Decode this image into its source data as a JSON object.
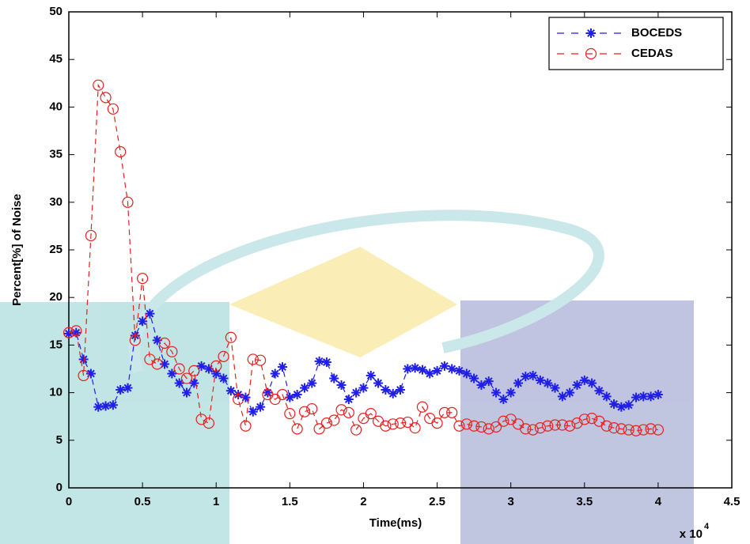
{
  "chart_data": {
    "type": "line",
    "xlabel": "Time(ms)",
    "ylabel": "Percent[%] of Noise",
    "x_multiplier": "x 10",
    "x_multiplier_exponent": "4",
    "xlim": [
      0,
      4.5
    ],
    "xticks": [
      0,
      0.5,
      1,
      1.5,
      2,
      2.5,
      3,
      3.5,
      4,
      4.5
    ],
    "ylim": [
      0,
      50
    ],
    "yticks": [
      0,
      5,
      10,
      15,
      20,
      25,
      30,
      35,
      40,
      45,
      50
    ],
    "grid": false,
    "legend_position": "upper right",
    "x": [
      0,
      0.05,
      0.1,
      0.15,
      0.2,
      0.25,
      0.3,
      0.35,
      0.4,
      0.45,
      0.5,
      0.55,
      0.6,
      0.65,
      0.7,
      0.75,
      0.8,
      0.85,
      0.9,
      0.95,
      1,
      1.05,
      1.1,
      1.15,
      1.2,
      1.25,
      1.3,
      1.35,
      1.4,
      1.45,
      1.5,
      1.55,
      1.6,
      1.65,
      1.7,
      1.75,
      1.8,
      1.85,
      1.9,
      1.95,
      2,
      2.05,
      2.1,
      2.15,
      2.2,
      2.25,
      2.3,
      2.35,
      2.4,
      2.45,
      2.5,
      2.55,
      2.6,
      2.65,
      2.7,
      2.75,
      2.8,
      2.85,
      2.9,
      2.95,
      3,
      3.05,
      3.1,
      3.15,
      3.2,
      3.25,
      3.3,
      3.35,
      3.4,
      3.45,
      3.5,
      3.55,
      3.6,
      3.65,
      3.7,
      3.75,
      3.8,
      3.85,
      3.9,
      3.95,
      4
    ],
    "series": [
      {
        "name": "BOCEDS",
        "color": "#1f1fe6",
        "marker": "*",
        "linestyle": "--",
        "values": [
          16.2,
          16.3,
          13.5,
          12,
          8.5,
          8.6,
          8.7,
          10.3,
          10.5,
          16,
          17.5,
          18.3,
          15.5,
          13,
          12,
          11,
          10,
          11,
          12.8,
          12.5,
          12,
          11.5,
          10.2,
          9.8,
          9.5,
          8,
          8.5,
          10,
          12,
          12.7,
          9.5,
          9.8,
          10.5,
          11,
          13.3,
          13.2,
          11.5,
          10.8,
          9.3,
          10,
          10.5,
          11.8,
          11,
          10.3,
          9.9,
          10.3,
          12.5,
          12.6,
          12.4,
          12,
          12.3,
          12.8,
          12.5,
          12.3,
          12,
          11.5,
          10.8,
          11.2,
          10,
          9.3,
          10,
          11,
          11.7,
          11.8,
          11.3,
          11,
          10.5,
          9.6,
          10,
          10.8,
          11.3,
          11,
          10.2,
          9.6,
          8.8,
          8.5,
          8.7,
          9.5,
          9.6,
          9.6,
          9.8
        ]
      },
      {
        "name": "CEDAS",
        "color": "#e61f1f",
        "marker": "o",
        "linestyle": "--",
        "values": [
          16.3,
          16.5,
          11.8,
          26.5,
          42.3,
          41,
          39.8,
          35.3,
          30,
          15.5,
          22,
          13.5,
          13,
          15.2,
          14.3,
          12.5,
          11.5,
          12.3,
          7.2,
          6.8,
          12.8,
          13.8,
          15.8,
          9.3,
          6.5,
          13.5,
          13.4,
          9.8,
          9.3,
          9.8,
          7.8,
          6.2,
          8,
          8.3,
          6.2,
          6.8,
          7.1,
          8.2,
          7.9,
          6.1,
          7.3,
          7.8,
          7,
          6.5,
          6.7,
          6.8,
          6.9,
          6.3,
          8.5,
          7.3,
          6.8,
          7.9,
          7.9,
          6.5,
          6.7,
          6.5,
          6.4,
          6.2,
          6.4,
          7,
          7.2,
          6.7,
          6.2,
          6.1,
          6.3,
          6.5,
          6.6,
          6.6,
          6.5,
          6.8,
          7.2,
          7.3,
          7,
          6.5,
          6.3,
          6.2,
          6.1,
          6,
          6.1,
          6.2,
          6.1
        ]
      }
    ]
  }
}
